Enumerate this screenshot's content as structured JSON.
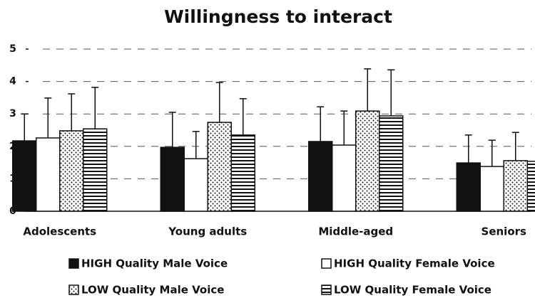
{
  "chart_data": {
    "type": "bar",
    "title": "Willingness to interact",
    "categories": [
      "Adolescents",
      "Young adults",
      "Middle-aged",
      "Seniors"
    ],
    "series": [
      {
        "name": "HIGH Quality Male Voice",
        "color": "#111111",
        "pattern": "solid",
        "values": [
          2.17,
          1.97,
          2.15,
          1.49
        ],
        "errors": [
          0.83,
          1.08,
          1.07,
          0.86
        ]
      },
      {
        "name": "HIGH Quality Female Voice",
        "color": "#ffffff",
        "pattern": "none",
        "values": [
          2.26,
          1.62,
          2.04,
          1.38
        ],
        "errors": [
          1.23,
          0.84,
          1.05,
          0.81
        ]
      },
      {
        "name": "LOW Quality Male Voice",
        "color": "#111111",
        "pattern": "dots",
        "values": [
          2.48,
          2.74,
          3.09,
          1.56
        ],
        "errors": [
          1.14,
          1.23,
          1.3,
          0.87
        ]
      },
      {
        "name": "LOW Quality Female Voice",
        "color": "#111111",
        "pattern": "hlines",
        "values": [
          2.54,
          2.35,
          2.94,
          1.54
        ],
        "errors": [
          1.28,
          1.12,
          1.42,
          0.87
        ]
      }
    ],
    "ylim": [
      0,
      5
    ],
    "yticks": [
      0,
      1,
      2,
      3,
      4,
      5
    ],
    "grid": true
  }
}
